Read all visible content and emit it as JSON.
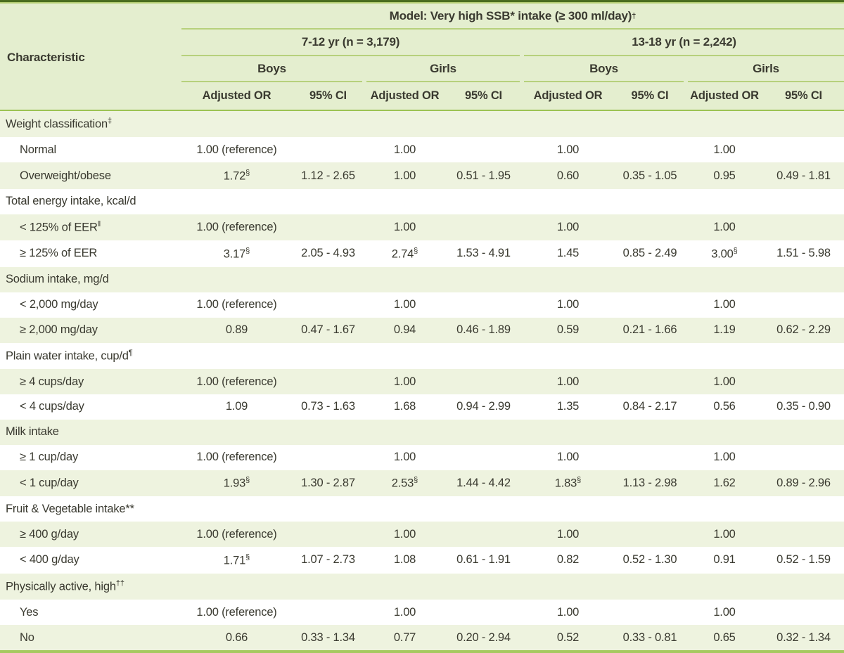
{
  "table": {
    "title": "Model: Very high SSB* intake (≥ 300 ml/day)",
    "title_sup": "†",
    "char_header": "Characteristic",
    "age_groups": [
      {
        "label": "7-12 yr (n = 3,179)"
      },
      {
        "label": "13-18 yr (n = 2,242)"
      }
    ],
    "sex_groups": [
      "Boys",
      "Girls",
      "Boys",
      "Girls"
    ],
    "col_headers": [
      "Adjusted OR",
      "95% CI",
      "Adjusted OR",
      "95% CI",
      "Adjusted OR",
      "95% CI",
      "Adjusted OR",
      "95% CI"
    ],
    "rows": [
      {
        "type": "section",
        "label": "Weight classification",
        "sup": "‡"
      },
      {
        "type": "data",
        "label": "Normal",
        "cells": [
          "1.00 (reference)",
          "",
          "1.00",
          "",
          "1.00",
          "",
          "1.00",
          ""
        ]
      },
      {
        "type": "data",
        "label": "Overweight/obese",
        "cells": [
          "1.72§",
          "1.12 - 2.65",
          "1.00",
          "0.51 - 1.95",
          "0.60",
          "0.35 - 1.05",
          "0.95",
          "0.49 - 1.81"
        ]
      },
      {
        "type": "section",
        "label": "Total energy intake, kcal/d",
        "sup": ""
      },
      {
        "type": "data",
        "label": "< 125% of EER",
        "sup": "‖",
        "cells": [
          "1.00 (reference)",
          "",
          "1.00",
          "",
          "1.00",
          "",
          "1.00",
          ""
        ]
      },
      {
        "type": "data",
        "label": "≥ 125% of EER",
        "cells": [
          "3.17§",
          "2.05 - 4.93",
          "2.74§",
          "1.53 - 4.91",
          "1.45",
          "0.85 - 2.49",
          "3.00§",
          "1.51 - 5.98"
        ]
      },
      {
        "type": "section",
        "label": "Sodium intake, mg/d",
        "sup": ""
      },
      {
        "type": "data",
        "label": "< 2,000 mg/day",
        "cells": [
          "1.00 (reference)",
          "",
          "1.00",
          "",
          "1.00",
          "",
          "1.00",
          ""
        ]
      },
      {
        "type": "data",
        "label": "≥ 2,000 mg/day",
        "cells": [
          "0.89",
          "0.47 - 1.67",
          "0.94",
          "0.46 - 1.89",
          "0.59",
          "0.21 - 1.66",
          "1.19",
          "0.62 - 2.29"
        ]
      },
      {
        "type": "section",
        "label": "Plain water intake, cup/d",
        "sup": "¶"
      },
      {
        "type": "data",
        "label": "≥ 4 cups/day",
        "cells": [
          "1.00 (reference)",
          "",
          "1.00",
          "",
          "1.00",
          "",
          "1.00",
          ""
        ]
      },
      {
        "type": "data",
        "label": "< 4 cups/day",
        "cells": [
          "1.09",
          "0.73 - 1.63",
          "1.68",
          "0.94 - 2.99",
          "1.35",
          "0.84 - 2.17",
          "0.56",
          "0.35 - 0.90"
        ]
      },
      {
        "type": "section",
        "label": "Milk intake",
        "sup": ""
      },
      {
        "type": "data",
        "label": "≥ 1 cup/day",
        "cells": [
          "1.00 (reference)",
          "",
          "1.00",
          "",
          "1.00",
          "",
          "1.00",
          ""
        ]
      },
      {
        "type": "data",
        "label": "< 1 cup/day",
        "cells": [
          "1.93§",
          "1.30 - 2.87",
          "2.53§",
          "1.44 - 4.42",
          "1.83§",
          "1.13 - 2.98",
          "1.62",
          "0.89 - 2.96"
        ]
      },
      {
        "type": "section",
        "label": "Fruit & Vegetable intake**",
        "sup": ""
      },
      {
        "type": "data",
        "label": "≥ 400 g/day",
        "cells": [
          "1.00 (reference)",
          "",
          "1.00",
          "",
          "1.00",
          "",
          "1.00",
          ""
        ]
      },
      {
        "type": "data",
        "label": "< 400 g/day",
        "cells": [
          "1.71§",
          "1.07 - 2.73",
          "1.08",
          "0.61 - 1.91",
          "0.82",
          "0.52 - 1.30",
          "0.91",
          "0.52 - 1.59"
        ]
      },
      {
        "type": "section",
        "label": "Physically active, high",
        "sup": "††"
      },
      {
        "type": "data",
        "label": "Yes",
        "cells": [
          "1.00 (reference)",
          "",
          "1.00",
          "",
          "1.00",
          "",
          "1.00",
          ""
        ]
      },
      {
        "type": "data",
        "label": "No",
        "cells": [
          "0.66",
          "0.33 - 1.34",
          "0.77",
          "0.20 - 2.94",
          "0.52",
          "0.33 - 0.81",
          "0.65",
          "0.32 - 1.34"
        ]
      }
    ]
  }
}
